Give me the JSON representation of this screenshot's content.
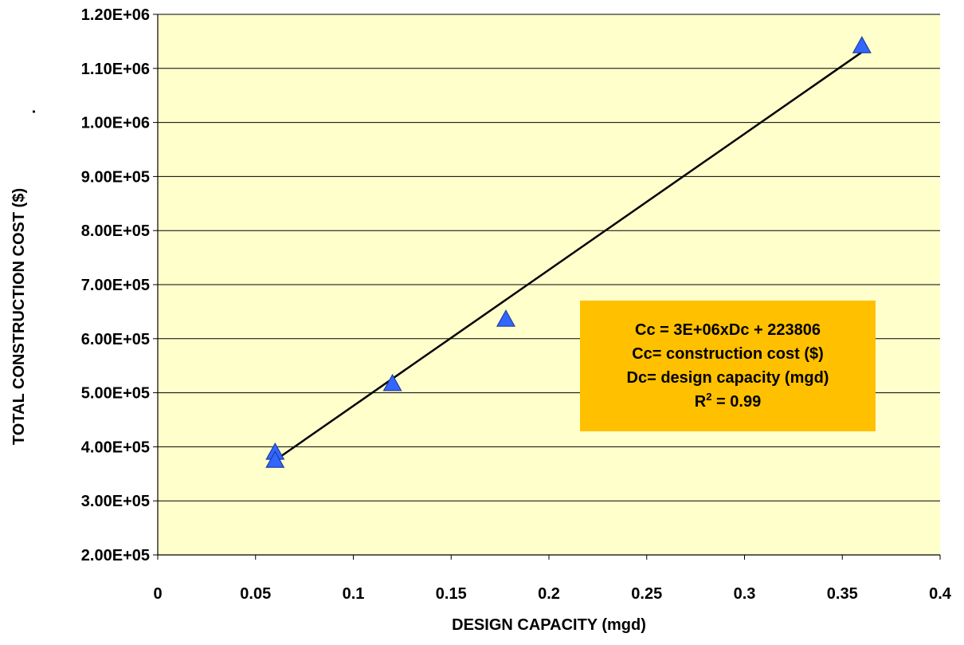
{
  "colors": {
    "plot_background": "#FFFFCC",
    "marker_fill": "#3366FF",
    "marker_stroke": "#1F3F9F",
    "trendline": "#000000",
    "annotation_background": "#FFC000",
    "gridline": "#000000"
  },
  "chart_data": {
    "type": "scatter",
    "title": "",
    "xlabel": "DESIGN CAPACITY (mgd)",
    "ylabel": "TOTAL CONSTRUCTION COST ($)",
    "ylabel_suffix": ".",
    "xlim": [
      0,
      0.4
    ],
    "ylim": [
      200000,
      1200000
    ],
    "x_ticks": [
      0,
      0.05,
      0.1,
      0.15,
      0.2,
      0.25,
      0.3,
      0.35,
      0.4
    ],
    "x_tick_labels": [
      "0",
      "0.05",
      "0.1",
      "0.15",
      "0.2",
      "0.25",
      "0.3",
      "0.35",
      "0.4"
    ],
    "y_ticks": [
      200000,
      300000,
      400000,
      500000,
      600000,
      700000,
      800000,
      900000,
      1000000,
      1100000,
      1200000
    ],
    "y_tick_labels": [
      "2.00E+05",
      "3.00E+05",
      "4.00E+05",
      "5.00E+05",
      "6.00E+05",
      "7.00E+05",
      "8.00E+05",
      "9.00E+05",
      "1.00E+06",
      "1.10E+06",
      "1.20E+06"
    ],
    "grid": "horizontal",
    "legend": "none",
    "marker": "triangle",
    "series": [
      {
        "points": [
          {
            "x": 0.06,
            "y": 390000
          },
          {
            "x": 0.06,
            "y": 375000
          },
          {
            "x": 0.12,
            "y": 517000
          },
          {
            "x": 0.178,
            "y": 636000
          },
          {
            "x": 0.36,
            "y": 1142000
          }
        ]
      }
    ],
    "trendline": {
      "type": "linear",
      "x_range": [
        0.06,
        0.36
      ],
      "y_range": [
        375000,
        1130000
      ]
    },
    "annotation": {
      "line1": "Cc = 3E+06xDc + 223806",
      "line2": "Cc= construction cost ($)",
      "line3": "Dc= design capacity (mgd)",
      "r2_prefix": "R",
      "r2_sup": "2",
      "r2_value": " = 0.99"
    }
  }
}
